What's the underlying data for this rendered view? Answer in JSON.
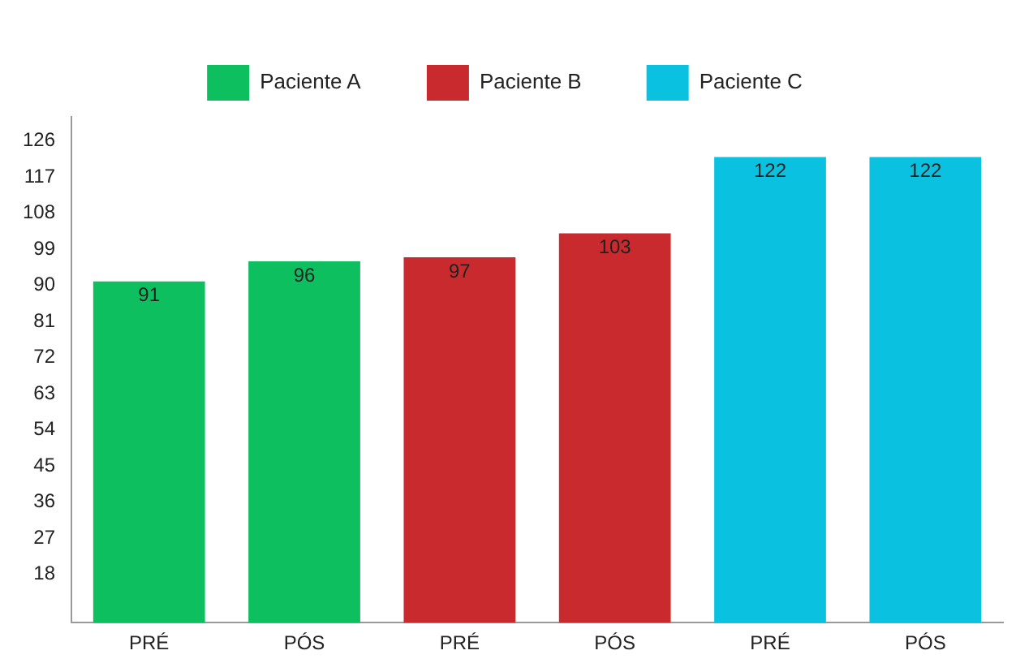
{
  "chart_data": {
    "type": "bar",
    "categories": [
      "PRÉ",
      "PÓS",
      "PRÉ",
      "PÓS",
      "PRÉ",
      "PÓS"
    ],
    "series": [
      {
        "name": "Paciente A",
        "color": "#0dbf5f",
        "values": [
          91,
          96,
          null,
          null,
          null,
          null
        ]
      },
      {
        "name": "Paciente B",
        "color": "#c92a2e",
        "values": [
          null,
          null,
          97,
          103,
          null,
          null
        ]
      },
      {
        "name": "Paciente C",
        "color": "#0ac2e0",
        "values": [
          null,
          null,
          null,
          null,
          122,
          122
        ]
      }
    ],
    "ylim": [
      6,
      132
    ],
    "yticks": [
      18,
      27,
      36,
      45,
      54,
      63,
      72,
      81,
      90,
      99,
      108,
      117,
      126
    ],
    "grid": false,
    "legend": "top",
    "data_labels": true
  }
}
